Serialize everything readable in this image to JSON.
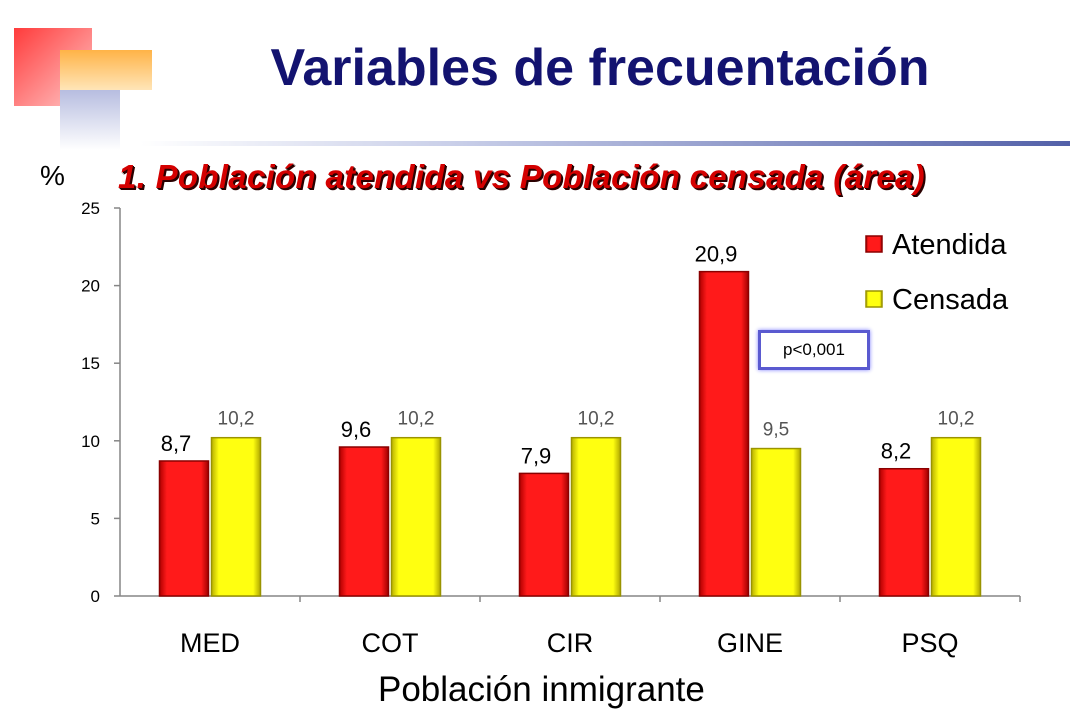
{
  "header": {
    "title": "Variables de frecuentación",
    "subtitle": "1. Población atendida vs Población censada (área)"
  },
  "annotation": {
    "pvalue": "p<0,001"
  },
  "chart_data": {
    "type": "bar",
    "categories": [
      "MED",
      "COT",
      "CIR",
      "GINE",
      "PSQ"
    ],
    "series": [
      {
        "name": "Atendida",
        "values": [
          8.7,
          9.6,
          7.9,
          20.9,
          8.2
        ],
        "labels": [
          "8,7",
          "9,6",
          "7,9",
          "20,9",
          "8,2"
        ],
        "color": "#ff0000"
      },
      {
        "name": "Censada",
        "values": [
          10.2,
          10.2,
          10.2,
          9.5,
          10.2
        ],
        "labels": [
          "10,2",
          "10,2",
          "10,2",
          "9,5",
          "10,2"
        ],
        "color": "#ffff00"
      }
    ],
    "ylabel": "%",
    "xlabel": "Población inmigrante",
    "ylim": [
      0,
      25
    ],
    "yticks": [
      "0",
      "5",
      "10",
      "15",
      "20",
      "25"
    ],
    "grid": false,
    "legend": "top-right"
  }
}
